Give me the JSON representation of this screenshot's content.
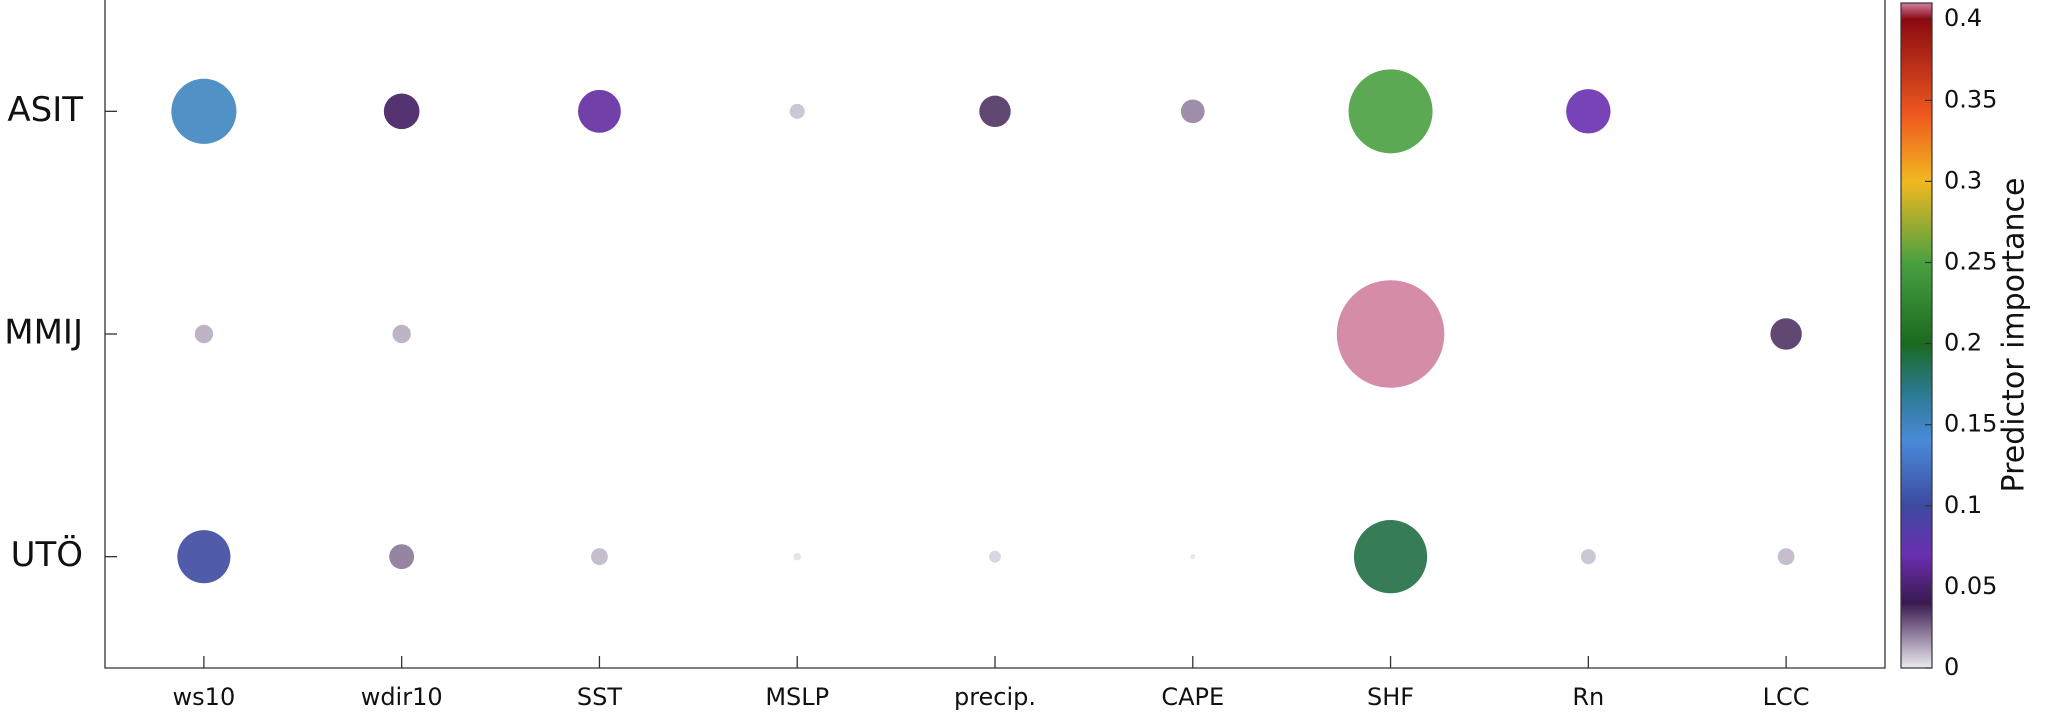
{
  "chart_data": {
    "type": "bubble_matrix",
    "x_categories": [
      "ws10",
      "wdir10",
      "SST",
      "MSLP",
      "precip.",
      "CAPE",
      "SHF",
      "Rn",
      "LCC"
    ],
    "y_categories": [
      "ASIT",
      "MMIJ",
      "UTÖ"
    ],
    "values": [
      [
        0.15,
        0.045,
        0.065,
        0.008,
        0.035,
        0.02,
        0.25,
        0.07,
        null
      ],
      [
        0.012,
        0.012,
        null,
        null,
        null,
        null,
        0.41,
        null,
        0.035
      ],
      [
        0.1,
        0.022,
        0.01,
        0.002,
        0.005,
        0.001,
        0.19,
        0.008,
        0.01
      ]
    ],
    "colorbar_label": "Predictor importance",
    "clim": [
      0,
      0.41
    ],
    "cticks": [
      0,
      0.05,
      0.1,
      0.15,
      0.2,
      0.25,
      0.3,
      0.35,
      0.4
    ],
    "colormap": [
      {
        "value": 0,
        "color": "#eceaf0"
      },
      {
        "value": 0.04,
        "color": "#3a1a50"
      },
      {
        "value": 0.07,
        "color": "#6a2fb0"
      },
      {
        "value": 0.1,
        "color": "#3d4aa0"
      },
      {
        "value": 0.14,
        "color": "#4a8ad8"
      },
      {
        "value": 0.17,
        "color": "#2a7a90"
      },
      {
        "value": 0.2,
        "color": "#1b6a20"
      },
      {
        "value": 0.25,
        "color": "#4aa040"
      },
      {
        "value": 0.3,
        "color": "#f0b820"
      },
      {
        "value": 0.34,
        "color": "#f05a20"
      },
      {
        "value": 0.4,
        "color": "#8a0a10"
      },
      {
        "value": 0.41,
        "color": "#d080a0"
      }
    ]
  }
}
